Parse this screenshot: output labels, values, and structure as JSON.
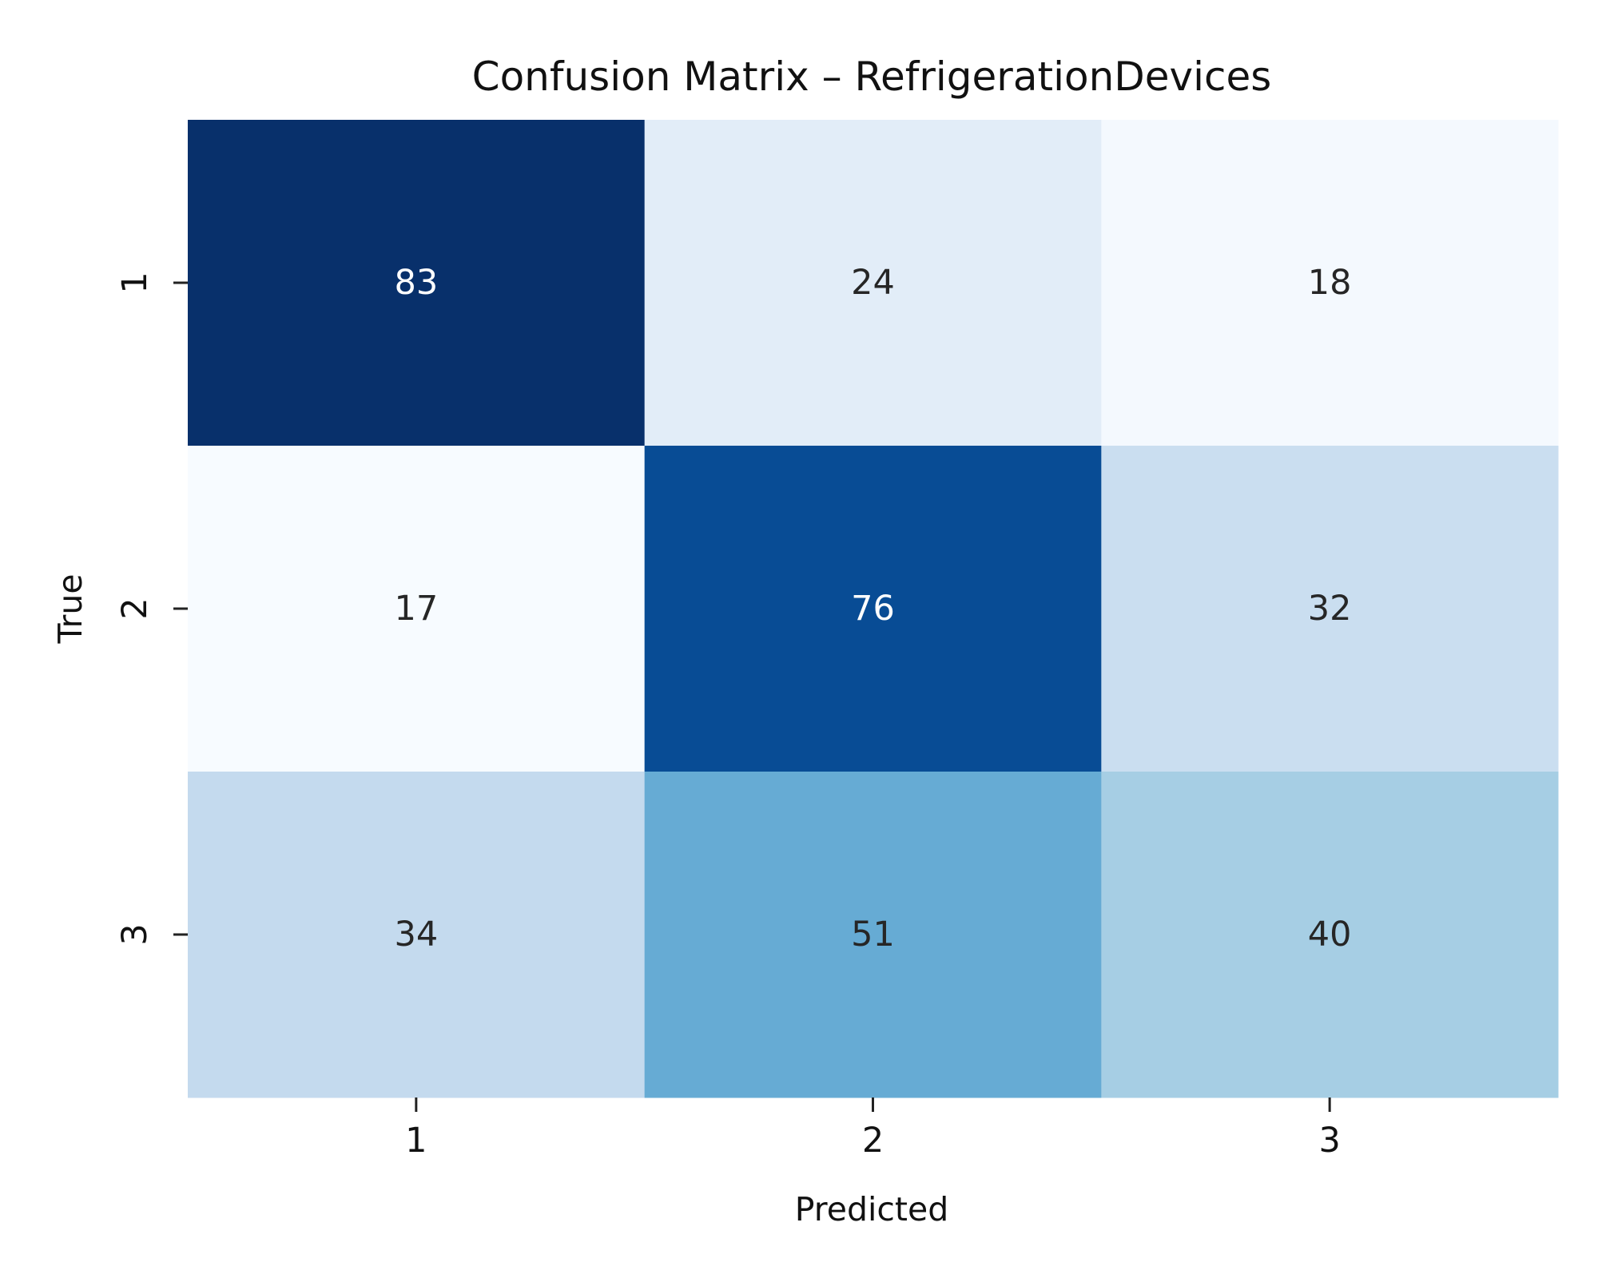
{
  "chart_data": {
    "type": "heatmap",
    "title": "Confusion Matrix – RefrigerationDevices",
    "xlabel": "Predicted",
    "ylabel": "True",
    "x_categories": [
      "1",
      "2",
      "3"
    ],
    "y_categories": [
      "1",
      "2",
      "3"
    ],
    "values": [
      [
        83,
        24,
        18
      ],
      [
        17,
        76,
        32
      ],
      [
        34,
        51,
        40
      ]
    ],
    "colormap": "Blues",
    "value_range": [
      17,
      83
    ],
    "colorbar": false,
    "grid": false,
    "legend": "none"
  }
}
